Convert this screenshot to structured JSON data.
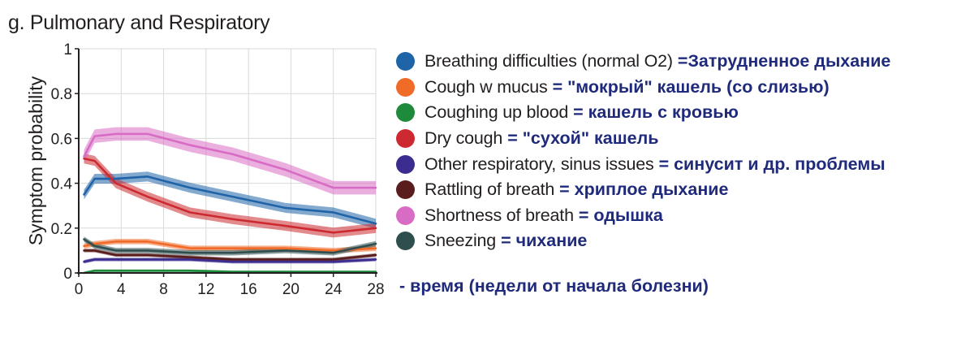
{
  "title": "g. Pulmonary and Respiratory",
  "time_note": "- время (недели от начала болезни)",
  "chart_data": {
    "type": "line",
    "title": "g. Pulmonary and Respiratory",
    "xlabel": "",
    "ylabel": "Symptom probability",
    "xlim": [
      0,
      28
    ],
    "ylim": [
      0,
      1
    ],
    "xticks": [
      "0",
      "4",
      "8",
      "12",
      "16",
      "20",
      "24",
      "28"
    ],
    "yticks": [
      "0",
      "0.2",
      "0.4",
      "0.6",
      "0.8",
      "1"
    ],
    "grid": true,
    "legend_position": "right",
    "x": [
      0.5,
      1.5,
      3.5,
      6.5,
      10.5,
      14.5,
      19.5,
      24,
      28
    ],
    "series": [
      {
        "name": "Breathing difficulties (normal O2)",
        "translation": "=Затрудненное дыхание",
        "color": "#1f63a8",
        "band": 0.022,
        "values": [
          0.35,
          0.42,
          0.42,
          0.43,
          0.38,
          0.34,
          0.29,
          0.27,
          0.22
        ]
      },
      {
        "name": "Cough w mucus",
        "translation": "= \"мокрый\" кашель (со слизью)",
        "color": "#f06a28",
        "band": 0.012,
        "values": [
          0.12,
          0.13,
          0.14,
          0.14,
          0.11,
          0.11,
          0.11,
          0.1,
          0.11
        ]
      },
      {
        "name": "Coughing up blood",
        "translation": "= кашель с кровью",
        "color": "#1e8a3c",
        "band": 0.006,
        "values": [
          0.0,
          0.01,
          0.01,
          0.01,
          0.01,
          0.005,
          0.005,
          0.005,
          0.005
        ]
      },
      {
        "name": "Dry cough",
        "translation": "= \"сухой\" кашель",
        "color": "#cc2a30",
        "band": 0.022,
        "values": [
          0.51,
          0.5,
          0.4,
          0.34,
          0.27,
          0.24,
          0.21,
          0.18,
          0.2
        ]
      },
      {
        "name": "Other respiratory, sinus issues",
        "translation": "= синусит и др. проблемы",
        "color": "#3b2d8f",
        "band": 0.008,
        "values": [
          0.05,
          0.06,
          0.06,
          0.06,
          0.06,
          0.05,
          0.05,
          0.05,
          0.06
        ]
      },
      {
        "name": "Rattling of breath",
        "translation": "= хриплое дыхание",
        "color": "#5a1d1d",
        "band": 0.008,
        "values": [
          0.1,
          0.1,
          0.08,
          0.08,
          0.07,
          0.06,
          0.06,
          0.06,
          0.08
        ]
      },
      {
        "name": "Shortness of breath",
        "translation": "= одышка",
        "color": "#d86bc4",
        "band": 0.03,
        "values": [
          0.52,
          0.61,
          0.62,
          0.62,
          0.57,
          0.53,
          0.46,
          0.38,
          0.38
        ]
      },
      {
        "name": "Sneezing",
        "translation": "= чихание",
        "color": "#2f4f4f",
        "band": 0.012,
        "values": [
          0.15,
          0.12,
          0.1,
          0.1,
          0.09,
          0.09,
          0.1,
          0.09,
          0.13
        ]
      }
    ]
  }
}
